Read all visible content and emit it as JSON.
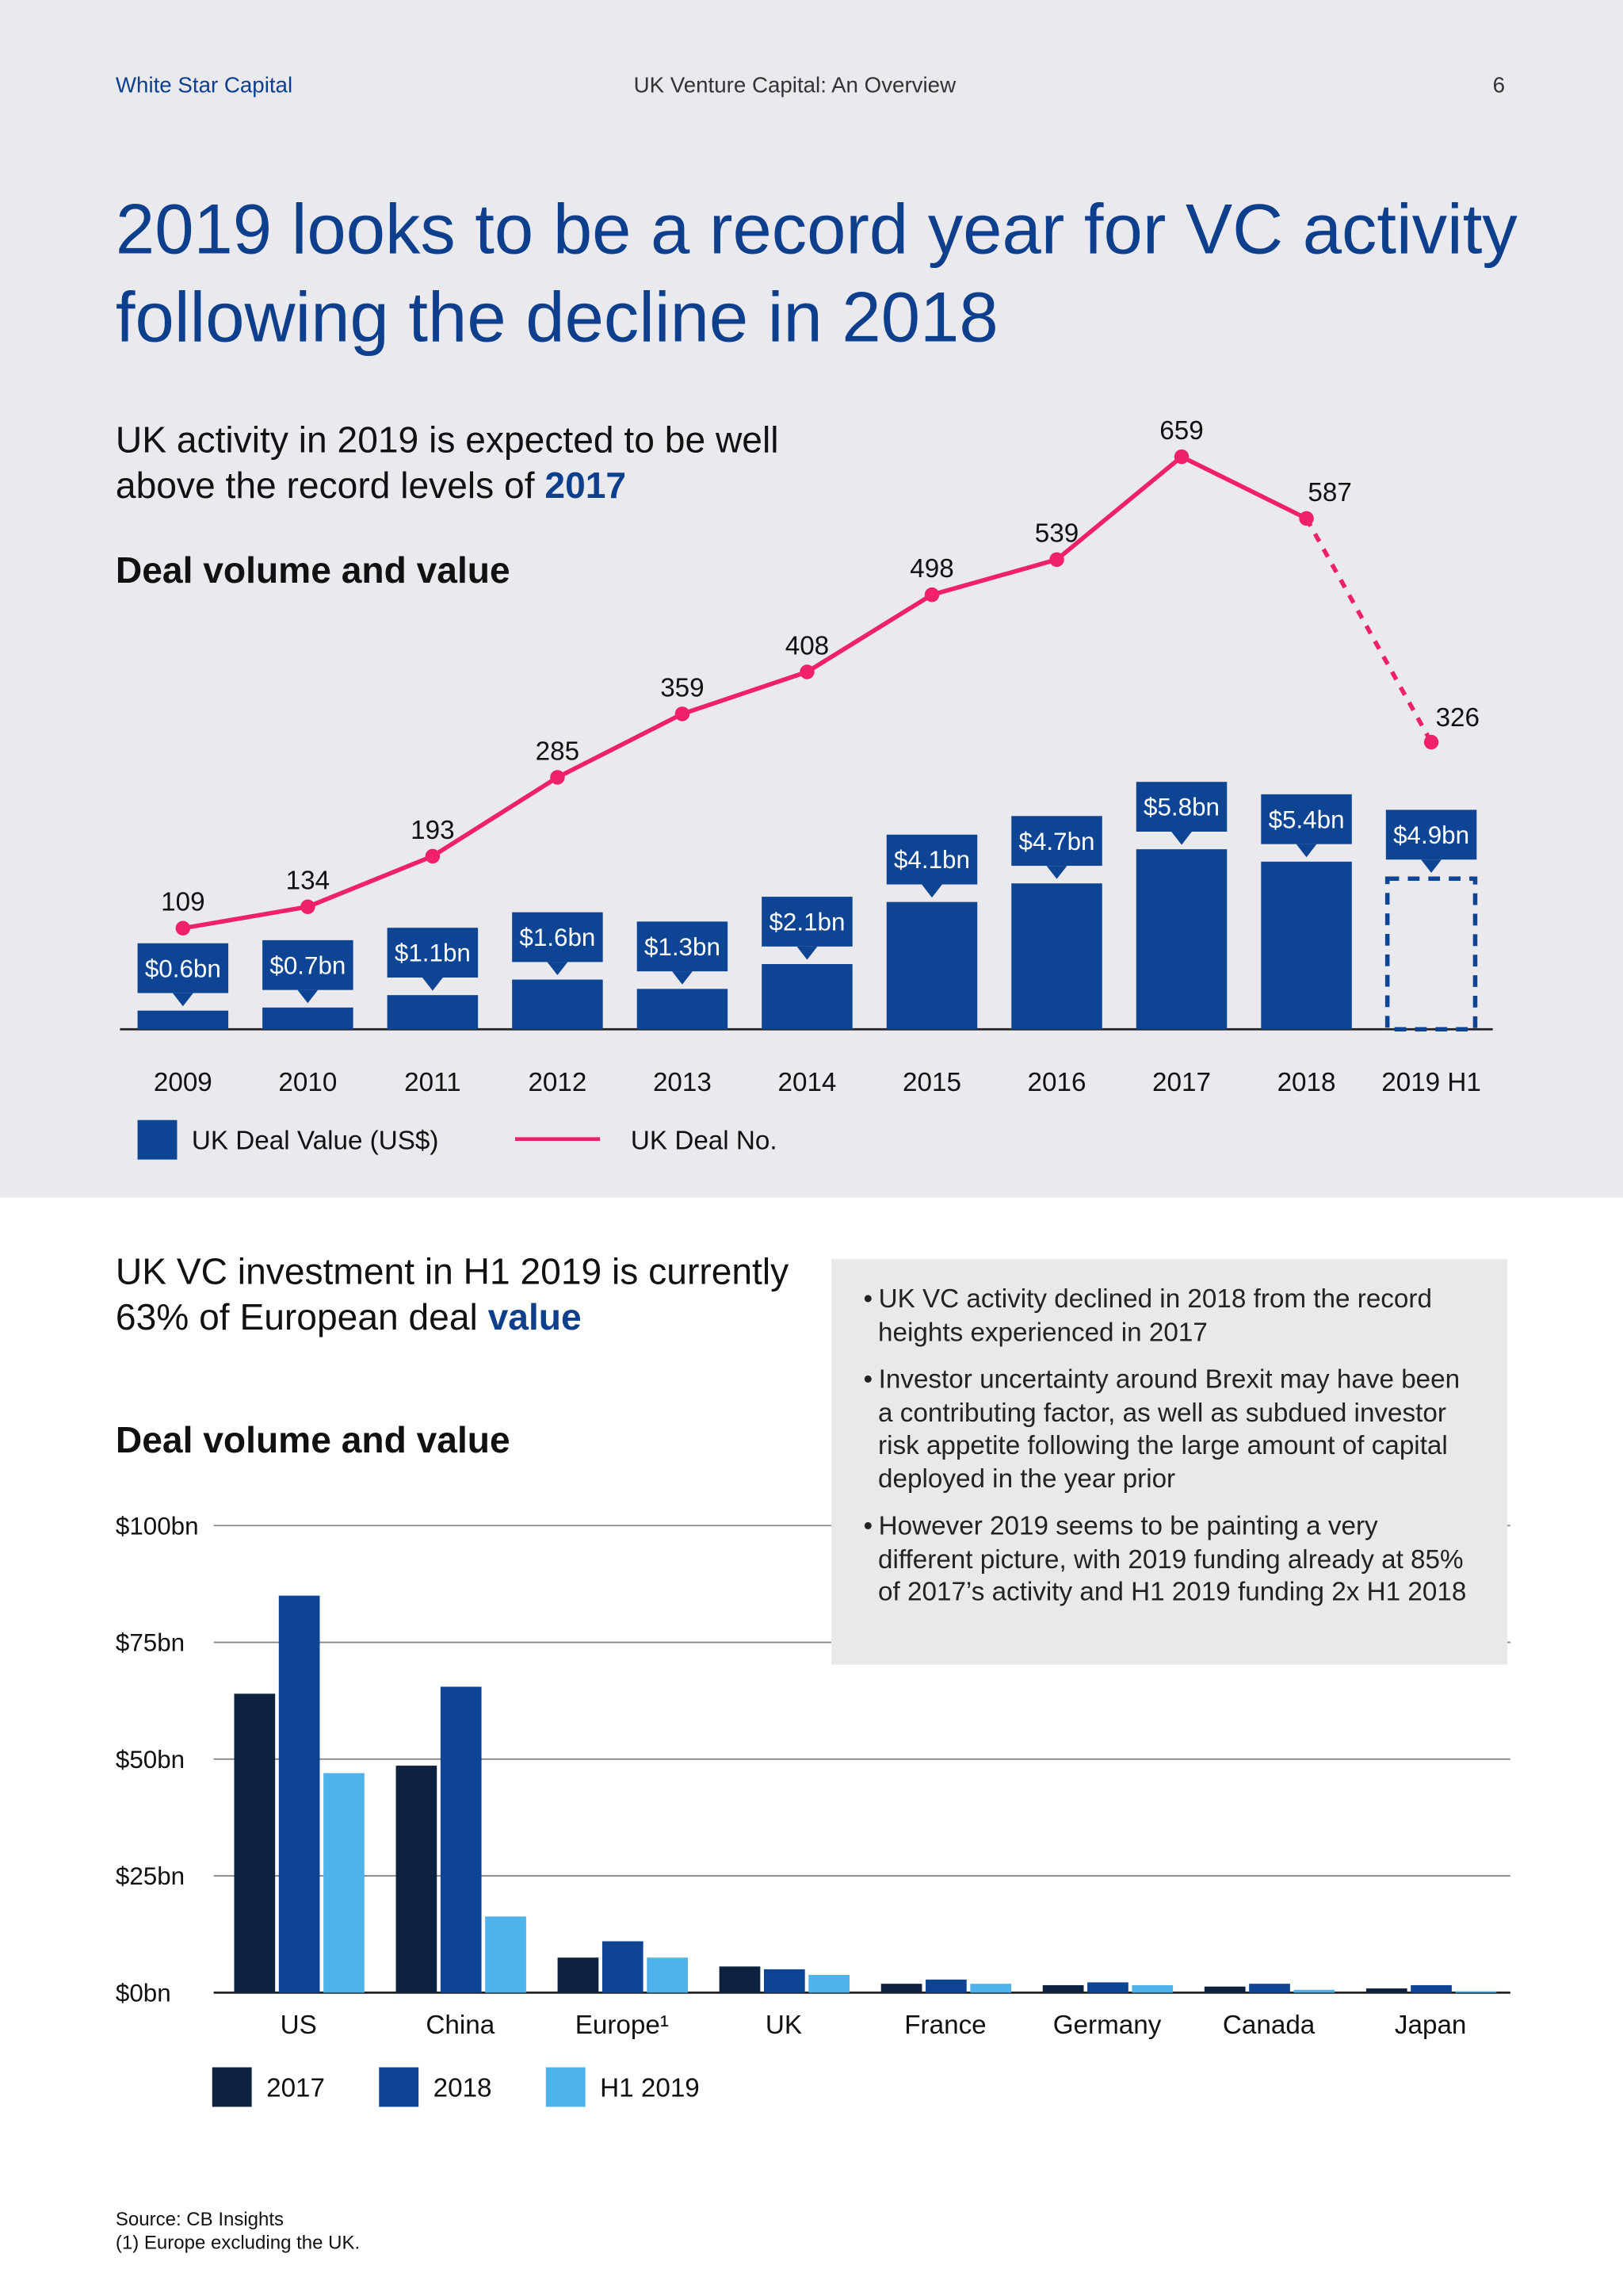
{
  "header": {
    "brand": "White Star Capital",
    "doc_title": "UK Venture Capital: An Overview",
    "page_number": "6"
  },
  "title": "2019 looks to be a record year for VC activity following the decline in 2018",
  "section1": {
    "subtitle_prefix": "UK activity in 2019 is expected to be well above the record levels of ",
    "subtitle_highlight": "2017",
    "chart_title": "Deal volume and value"
  },
  "section2": {
    "subtitle_prefix": "UK VC investment in H1 2019 is currently 63% of European deal ",
    "subtitle_highlight": "value",
    "chart_title": "Deal volume and value"
  },
  "bullets": [
    "UK VC activity declined in 2018 from the record heights experienced in 2017",
    "Investor uncertainty around Brexit may have been a contributing factor, as well as subdued investor risk appetite following the large amount of capital deployed in the year prior",
    "However 2019 seems to be painting a very different picture, with 2019 funding already at 85% of 2017’s activity and H1 2019 funding 2x H1 2018"
  ],
  "footer": {
    "source": "Source: CB Insights",
    "note": "(1) Europe excluding the UK."
  },
  "colors": {
    "brand_blue": "#0d4594",
    "pink": "#f0206a",
    "navy": "#0e2240",
    "light_blue": "#4db3ea"
  },
  "chart_data": [
    {
      "type": "bar+line",
      "categories": [
        "2009",
        "2010",
        "2011",
        "2012",
        "2013",
        "2014",
        "2015",
        "2016",
        "2017",
        "2018",
        "2019 H1"
      ],
      "series": [
        {
          "name": "UK Deal Value (US$)",
          "type": "bar",
          "values": [
            0.6,
            0.7,
            1.1,
            1.6,
            1.3,
            2.1,
            4.1,
            4.7,
            5.8,
            5.4,
            4.9
          ],
          "labels": [
            "$0.6bn",
            "$0.7bn",
            "$1.1bn",
            "$1.6bn",
            "$1.3bn",
            "$2.1bn",
            "$4.1bn",
            "$4.7bn",
            "$5.8bn",
            "$5.4bn",
            "$4.9bn"
          ],
          "projected_last": true
        },
        {
          "name": "UK Deal No.",
          "type": "line",
          "values": [
            109,
            134,
            193,
            285,
            359,
            408,
            498,
            539,
            659,
            587,
            326
          ],
          "dashed_last_segment": true
        }
      ],
      "legend": "bottom-left"
    },
    {
      "type": "bar",
      "categories": [
        "US",
        "China",
        "Europe¹",
        "UK",
        "France",
        "Germany",
        "Canada",
        "Japan"
      ],
      "series": [
        {
          "name": "2017",
          "values": [
            64,
            48.6,
            7.5,
            5.6,
            1.9,
            1.6,
            1.3,
            0.9
          ]
        },
        {
          "name": "2018",
          "values": [
            85,
            65.5,
            11,
            5,
            2.8,
            2.2,
            1.9,
            1.6
          ]
        },
        {
          "name": "H1 2019",
          "values": [
            47,
            16.3,
            7.5,
            3.8,
            1.9,
            1.6,
            0.6,
            0.3
          ]
        }
      ],
      "ylim": [
        0,
        100
      ],
      "yticks": [
        0,
        25,
        50,
        75,
        100
      ],
      "ytick_labels": [
        "$0bn",
        "$25bn",
        "$50bn",
        "$75bn",
        "$100bn"
      ],
      "grid": true,
      "legend": "bottom-left"
    }
  ]
}
